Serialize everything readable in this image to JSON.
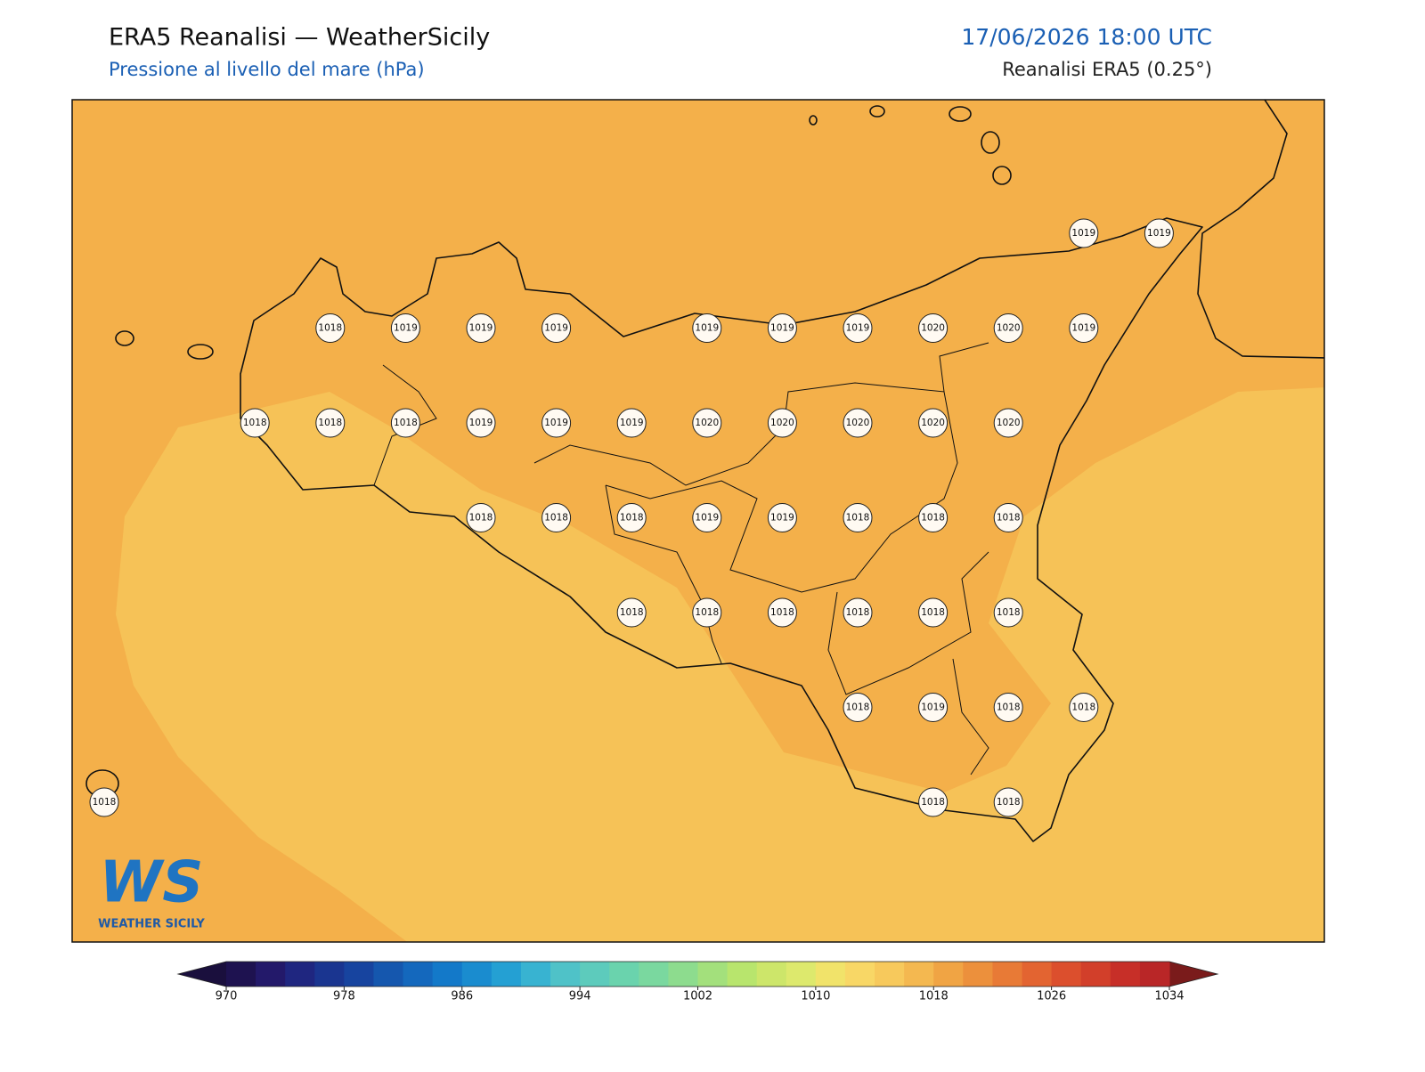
{
  "header": {
    "title": "ERA5 Reanalisi — WeatherSicily",
    "subtitle": "Pressione al livello del mare (hPa)",
    "datetime": "17/06/2026 18:00 UTC",
    "source": "Reanalisi ERA5 (0.25°)"
  },
  "map": {
    "grid": [
      [
        null,
        null,
        null,
        null,
        null,
        null,
        null,
        null,
        null,
        null,
        null,
        null,
        null,
        1019,
        1019
      ],
      [
        null,
        null,
        null,
        1018,
        1019,
        1019,
        1019,
        null,
        1019,
        1019,
        1019,
        1020,
        1020,
        1019,
        null
      ],
      [
        null,
        null,
        1018,
        1018,
        1018,
        1019,
        1019,
        1019,
        1020,
        1020,
        1020,
        1020,
        1020,
        null,
        null
      ],
      [
        null,
        null,
        null,
        null,
        null,
        1018,
        1018,
        1018,
        1019,
        1019,
        1018,
        1018,
        1018,
        null,
        null
      ],
      [
        null,
        null,
        null,
        null,
        null,
        null,
        null,
        1018,
        1018,
        1018,
        1018,
        1018,
        1018,
        null,
        null
      ],
      [
        null,
        null,
        null,
        null,
        null,
        null,
        null,
        null,
        null,
        null,
        1018,
        1019,
        1018,
        1018,
        null
      ],
      [
        1018,
        null,
        null,
        null,
        null,
        null,
        null,
        null,
        null,
        null,
        null,
        1018,
        1018,
        null,
        null
      ]
    ]
  },
  "colorbar": {
    "range": [
      970,
      1034
    ],
    "ticks": [
      970,
      978,
      986,
      994,
      1002,
      1010,
      1018,
      1026,
      1034
    ],
    "colors": [
      "#1e1250",
      "#23196a",
      "#1f2680",
      "#1a3590",
      "#17449f",
      "#1557ae",
      "#1468bd",
      "#1379c9",
      "#1a8ccf",
      "#24a0d3",
      "#38b3d1",
      "#4fc2c8",
      "#5dcbbc",
      "#6ad3ad",
      "#7ad89f",
      "#8ddc8e",
      "#a3e07c",
      "#b8e56d",
      "#cde66a",
      "#dde96d",
      "#f1e36a",
      "#f8d766",
      "#f7c95c",
      "#f4b850",
      "#f0a444",
      "#ec903c",
      "#e87a36",
      "#e36431",
      "#dc4f2d",
      "#d23f2a",
      "#c72f28",
      "#b92627"
    ],
    "under": "#1a0f3d",
    "over": "#7a1b1b"
  },
  "logo": {
    "mark": "WS",
    "text": "WEATHER SICILY"
  }
}
